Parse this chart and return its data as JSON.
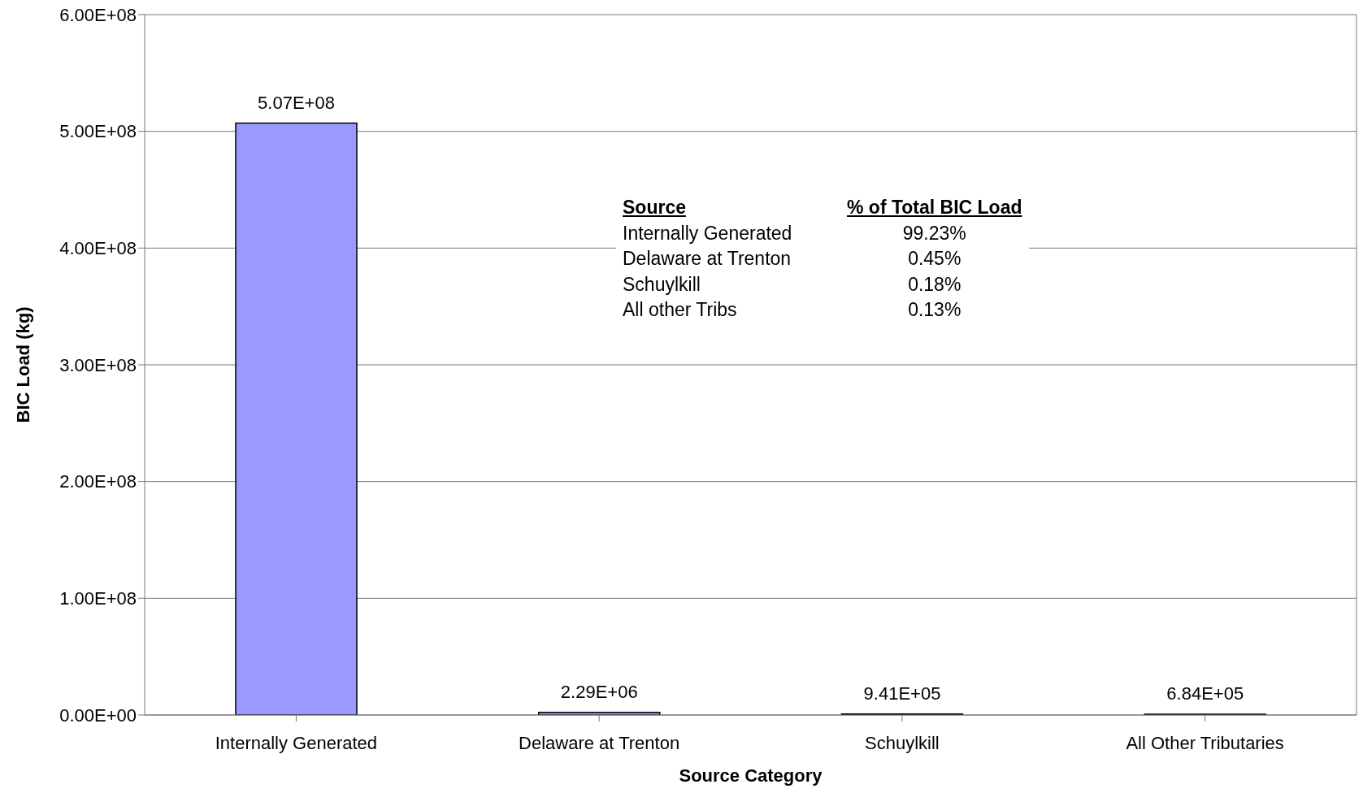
{
  "chart_data": {
    "type": "bar",
    "xlabel": "Source Category",
    "ylabel": "BIC Load (kg)",
    "categories": [
      "Internally Generated",
      "Delaware at Trenton",
      "Schuylkill",
      "All Other Tributaries"
    ],
    "values": [
      507000000,
      2290000,
      941000,
      684000
    ],
    "color": "#9999ff",
    "value_labels": [
      "5.07E+08",
      "2.29E+06",
      "9.41E+05",
      "6.84E+05"
    ],
    "ylim": [
      0,
      600000000
    ],
    "yticks": [
      {
        "value": 0,
        "label": "0.00E+00"
      },
      {
        "value": 100000000,
        "label": "1.00E+08"
      },
      {
        "value": 200000000,
        "label": "2.00E+08"
      },
      {
        "value": 300000000,
        "label": "3.00E+08"
      },
      {
        "value": 400000000,
        "label": "4.00E+08"
      },
      {
        "value": 500000000,
        "label": "5.00E+08"
      },
      {
        "value": 600000000,
        "label": "6.00E+08"
      }
    ],
    "grid": "y",
    "annotations": [
      "Source",
      "% of Total BIC Load",
      "Internally Generated",
      "99.23%",
      "Delaware at Trenton",
      "0.45%",
      "Schuylkill",
      "0.18%",
      "All other Tribs",
      "0.13%"
    ]
  }
}
